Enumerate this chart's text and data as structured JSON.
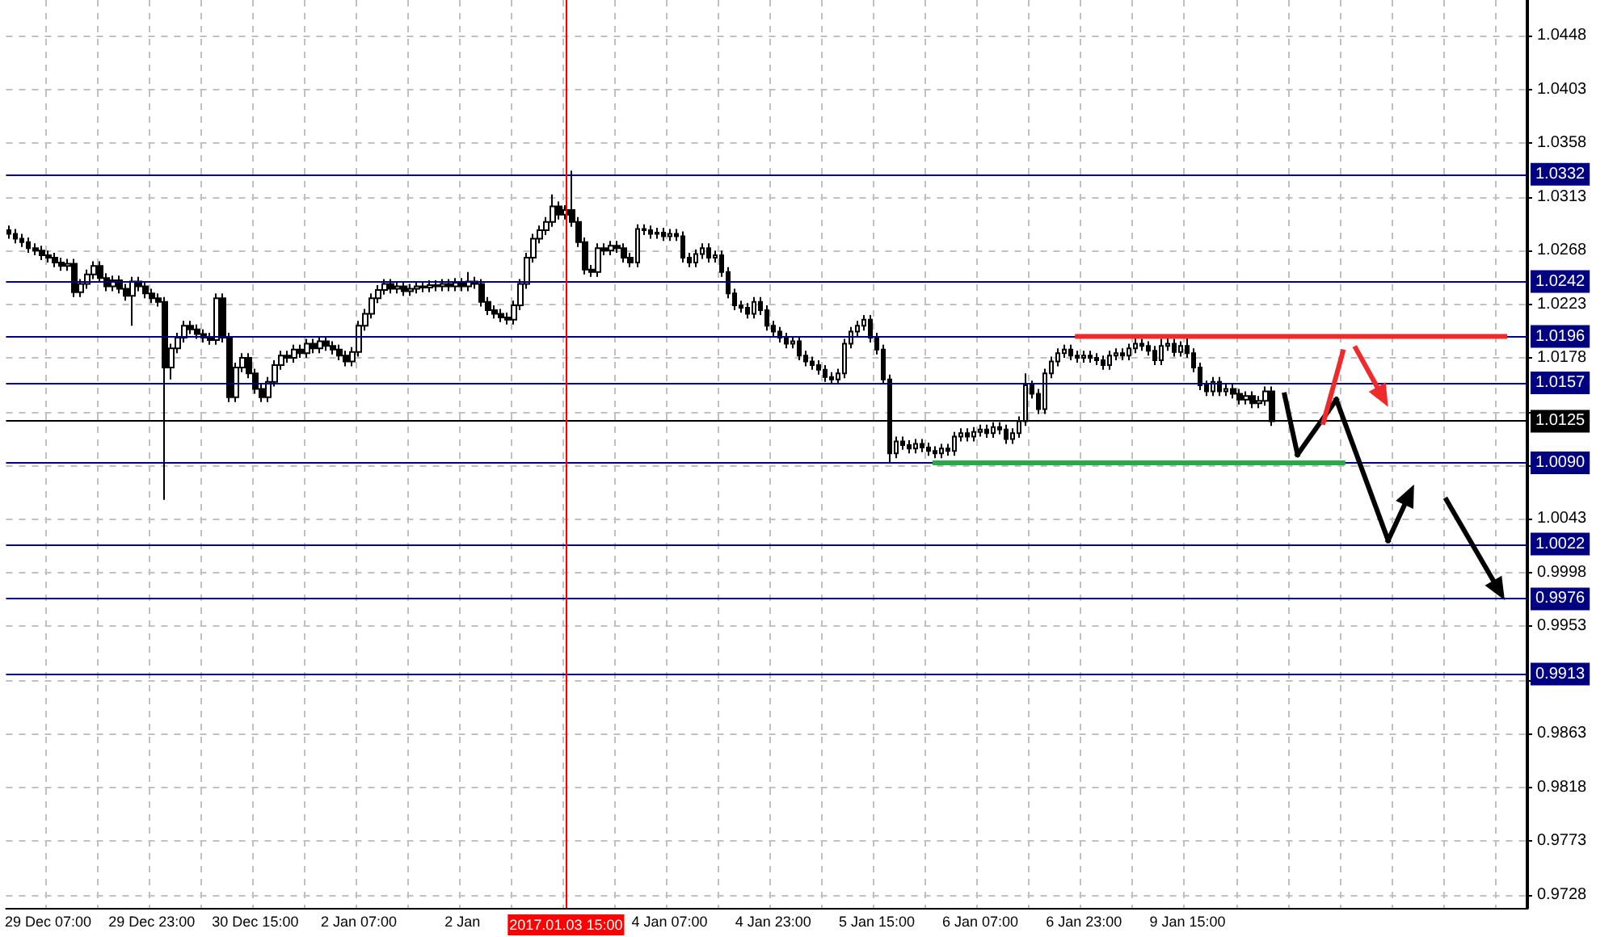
{
  "chart_data": {
    "type": "candlestick",
    "color": "#000000",
    "categories": [
      null,
      null,
      null,
      null,
      null,
      null,
      "29 Dec 07:00",
      null,
      null,
      null,
      null,
      null,
      null,
      null,
      null,
      null,
      null,
      null,
      null,
      null,
      null,
      null,
      "29 Dec 23:00",
      null,
      null,
      null,
      null,
      null,
      null,
      null,
      null,
      null,
      null,
      null,
      null,
      null,
      null,
      null,
      "30 Dec 15:00",
      null,
      null,
      null,
      null,
      null,
      null,
      null,
      null,
      null,
      null,
      null,
      null,
      null,
      null,
      null,
      "2 Jan 07:00",
      null,
      null,
      null,
      null,
      null,
      null,
      null,
      null,
      null,
      null,
      null,
      null,
      null,
      null,
      null,
      "2 Jan",
      null,
      null,
      null,
      null,
      null,
      null,
      null,
      null,
      null,
      null,
      null,
      null,
      null,
      null,
      null,
      "2017.01.03 15:00",
      null,
      null,
      null,
      null,
      null,
      null,
      null,
      null,
      null,
      null,
      null,
      null,
      null,
      null,
      null,
      "4 Jan 07:00",
      null,
      null,
      null,
      null,
      null,
      null,
      null,
      null,
      null,
      null,
      null,
      null,
      null,
      null,
      null,
      "4 Jan 23:00",
      null,
      null,
      null,
      null,
      null,
      null,
      null,
      null,
      null,
      null,
      null,
      null,
      null,
      null,
      null,
      "5 Jan 15:00",
      null,
      null,
      null,
      null,
      null,
      null,
      null,
      null,
      null,
      null,
      null,
      null,
      null,
      null,
      null,
      "6 Jan 07:00",
      null,
      null,
      null,
      null,
      null,
      null,
      null,
      null,
      null,
      null,
      null,
      null,
      null,
      null,
      null,
      "6 Jan 23:00",
      null,
      null,
      null,
      null,
      null,
      null,
      null,
      null,
      null,
      null,
      null,
      null,
      null,
      null,
      null,
      "9 Jan 15:00",
      null,
      null,
      null,
      null,
      null,
      null,
      null,
      null,
      null,
      null,
      null,
      null,
      null,
      null,
      null,
      null,
      null,
      null,
      null,
      null,
      null,
      null,
      null,
      null,
      null,
      null,
      null,
      null,
      null,
      null,
      null,
      null,
      null,
      null,
      null,
      null,
      null,
      null,
      null,
      null,
      null,
      null,
      null,
      null,
      null,
      null,
      null,
      null,
      null,
      null,
      null,
      null
    ],
    "ohlc": [
      [
        1.0285,
        1.0289,
        1.0278,
        1.0282
      ],
      [
        1.0282,
        1.0286,
        1.0274,
        1.0278
      ],
      [
        1.0278,
        1.0282,
        1.0271,
        1.0275
      ],
      [
        1.0275,
        1.0279,
        1.0266,
        1.027
      ],
      [
        1.027,
        1.0274,
        1.0264,
        1.0268
      ],
      [
        1.0268,
        1.0272,
        1.026,
        1.0264
      ],
      [
        1.0264,
        1.0268,
        1.0258,
        1.0262
      ],
      [
        1.0262,
        1.0266,
        1.0254,
        1.0258
      ],
      [
        1.0258,
        1.0262,
        1.0251,
        1.0255
      ],
      [
        1.0255,
        1.0261,
        1.0251,
        1.0257
      ],
      [
        1.0257,
        1.0261,
        1.0229,
        1.0233
      ],
      [
        1.0233,
        1.0244,
        1.0229,
        1.024
      ],
      [
        1.024,
        1.0252,
        1.0236,
        1.0248
      ],
      [
        1.0248,
        1.0259,
        1.0244,
        1.0255
      ],
      [
        1.0255,
        1.0259,
        1.0241,
        1.0245
      ],
      [
        1.0245,
        1.0249,
        1.0234,
        1.0238
      ],
      [
        1.0238,
        1.0247,
        1.0234,
        1.0243
      ],
      [
        1.0243,
        1.0247,
        1.0232,
        1.0236
      ],
      [
        1.0236,
        1.024,
        1.0226,
        1.023
      ],
      [
        1.023,
        1.0246,
        1.0205,
        1.0242
      ],
      [
        1.0242,
        1.0246,
        1.0234,
        1.0238
      ],
      [
        1.0238,
        1.0242,
        1.0228,
        1.0232
      ],
      [
        1.0232,
        1.0236,
        1.0224,
        1.0228
      ],
      [
        1.0228,
        1.0232,
        1.0221,
        1.0225
      ],
      [
        1.0225,
        1.0229,
        1.0059,
        1.017
      ],
      [
        1.017,
        1.019,
        1.016,
        1.0186
      ],
      [
        1.0186,
        1.0199,
        1.0182,
        1.0195
      ],
      [
        1.0195,
        1.0209,
        1.0191,
        1.0205
      ],
      [
        1.0205,
        1.0209,
        1.0198,
        1.0202
      ],
      [
        1.0202,
        1.0206,
        1.0194,
        1.0198
      ],
      [
        1.0198,
        1.0202,
        1.0191,
        1.0195
      ],
      [
        1.0195,
        1.0199,
        1.0189,
        1.0193
      ],
      [
        1.0193,
        1.0232,
        1.0189,
        1.0228
      ],
      [
        1.0228,
        1.0232,
        1.0191,
        1.0195
      ],
      [
        1.0195,
        1.0199,
        1.0141,
        1.0145
      ],
      [
        1.0145,
        1.0174,
        1.0141,
        1.017
      ],
      [
        1.017,
        1.0182,
        1.0166,
        1.0178
      ],
      [
        1.0178,
        1.0182,
        1.0161,
        1.0165
      ],
      [
        1.0165,
        1.0169,
        1.0148,
        1.0152
      ],
      [
        1.0152,
        1.0156,
        1.0141,
        1.0145
      ],
      [
        1.0145,
        1.0162,
        1.0141,
        1.0158
      ],
      [
        1.0158,
        1.0176,
        1.0154,
        1.0172
      ],
      [
        1.0172,
        1.0184,
        1.0168,
        1.018
      ],
      [
        1.018,
        1.0184,
        1.0174,
        1.0178
      ],
      [
        1.0178,
        1.0189,
        1.0174,
        1.0185
      ],
      [
        1.0185,
        1.0189,
        1.0178,
        1.0182
      ],
      [
        1.0182,
        1.0194,
        1.0178,
        1.019
      ],
      [
        1.019,
        1.0194,
        1.0182,
        1.0186
      ],
      [
        1.0186,
        1.0196,
        1.0182,
        1.0192
      ],
      [
        1.0192,
        1.0196,
        1.0184,
        1.0188
      ],
      [
        1.0188,
        1.0192,
        1.0181,
        1.0185
      ],
      [
        1.0185,
        1.0189,
        1.0176,
        1.018
      ],
      [
        1.018,
        1.0184,
        1.0171,
        1.0175
      ],
      [
        1.0175,
        1.0187,
        1.0171,
        1.0183
      ],
      [
        1.0183,
        1.0209,
        1.0179,
        1.0205
      ],
      [
        1.0205,
        1.0219,
        1.0201,
        1.0215
      ],
      [
        1.0215,
        1.0232,
        1.0211,
        1.0228
      ],
      [
        1.0228,
        1.0239,
        1.0224,
        1.0235
      ],
      [
        1.0235,
        1.0244,
        1.0231,
        1.024
      ],
      [
        1.024,
        1.0244,
        1.0232,
        1.0236
      ],
      [
        1.0236,
        1.0242,
        1.0232,
        1.0238
      ],
      [
        1.0238,
        1.0242,
        1.023,
        1.0234
      ],
      [
        1.0234,
        1.024,
        1.023,
        1.0236
      ],
      [
        1.0236,
        1.0242,
        1.0232,
        1.0238
      ],
      [
        1.0238,
        1.0242,
        1.0233,
        1.0237
      ],
      [
        1.0237,
        1.0243,
        1.0233,
        1.0239
      ],
      [
        1.0239,
        1.0243,
        1.0234,
        1.0238
      ],
      [
        1.0238,
        1.0244,
        1.0234,
        1.024
      ],
      [
        1.024,
        1.0244,
        1.0234,
        1.0238
      ],
      [
        1.0238,
        1.0245,
        1.0234,
        1.0241
      ],
      [
        1.0241,
        1.0245,
        1.0234,
        1.0238
      ],
      [
        1.0238,
        1.025,
        1.0234,
        1.0242
      ],
      [
        1.0242,
        1.0246,
        1.0236,
        1.024
      ],
      [
        1.024,
        1.0244,
        1.0221,
        1.0225
      ],
      [
        1.0225,
        1.0229,
        1.0214,
        1.0218
      ],
      [
        1.0218,
        1.0222,
        1.0211,
        1.0215
      ],
      [
        1.0215,
        1.0219,
        1.0208,
        1.0212
      ],
      [
        1.0212,
        1.0216,
        1.0206,
        1.021
      ],
      [
        1.021,
        1.0226,
        1.0206,
        1.0222
      ],
      [
        1.0222,
        1.0244,
        1.0218,
        1.024
      ],
      [
        1.024,
        1.0266,
        1.0236,
        1.0262
      ],
      [
        1.0262,
        1.0282,
        1.0258,
        1.0278
      ],
      [
        1.0278,
        1.0289,
        1.0274,
        1.0285
      ],
      [
        1.0285,
        1.0296,
        1.0281,
        1.0292
      ],
      [
        1.0292,
        1.0315,
        1.0288,
        1.0305
      ],
      [
        1.0305,
        1.0309,
        1.0294,
        1.0298
      ],
      [
        1.0298,
        1.0306,
        1.0294,
        1.0302
      ],
      [
        1.0302,
        1.0335,
        1.0288,
        1.0292
      ],
      [
        1.0292,
        1.0296,
        1.0271,
        1.0275
      ],
      [
        1.0275,
        1.0279,
        1.0248,
        1.0252
      ],
      [
        1.0252,
        1.0256,
        1.0246,
        1.025
      ],
      [
        1.025,
        1.0274,
        1.0246,
        1.027
      ],
      [
        1.027,
        1.0274,
        1.0264,
        1.0268
      ],
      [
        1.0268,
        1.0276,
        1.0264,
        1.0272
      ],
      [
        1.0272,
        1.0276,
        1.0266,
        1.027
      ],
      [
        1.027,
        1.0274,
        1.0258,
        1.0262
      ],
      [
        1.0262,
        1.0266,
        1.0254,
        1.0258
      ],
      [
        1.0258,
        1.029,
        1.0254,
        1.0286
      ],
      [
        1.0286,
        1.029,
        1.0281,
        1.0285
      ],
      [
        1.0285,
        1.0289,
        1.0278,
        1.0282
      ],
      [
        1.0282,
        1.0287,
        1.0278,
        1.0283
      ],
      [
        1.0283,
        1.0287,
        1.0276,
        1.028
      ],
      [
        1.028,
        1.0286,
        1.0276,
        1.0282
      ],
      [
        1.0282,
        1.0286,
        1.0276,
        1.028
      ],
      [
        1.028,
        1.0284,
        1.0258,
        1.0262
      ],
      [
        1.0262,
        1.0266,
        1.0254,
        1.0258
      ],
      [
        1.0258,
        1.0269,
        1.0254,
        1.0265
      ],
      [
        1.0265,
        1.0274,
        1.0261,
        1.027
      ],
      [
        1.027,
        1.0274,
        1.0258,
        1.0262
      ],
      [
        1.0262,
        1.0268,
        1.0258,
        1.0264
      ],
      [
        1.0264,
        1.0268,
        1.0246,
        1.025
      ],
      [
        1.025,
        1.0254,
        1.0228,
        1.0232
      ],
      [
        1.0232,
        1.0236,
        1.0218,
        1.0222
      ],
      [
        1.0222,
        1.0226,
        1.0216,
        1.022
      ],
      [
        1.022,
        1.0224,
        1.0211,
        1.0215
      ],
      [
        1.0215,
        1.0229,
        1.0211,
        1.0225
      ],
      [
        1.0225,
        1.0229,
        1.0214,
        1.0218
      ],
      [
        1.0218,
        1.0222,
        1.0201,
        1.0205
      ],
      [
        1.0205,
        1.0209,
        1.0196,
        1.02
      ],
      [
        1.02,
        1.0204,
        1.0191,
        1.0195
      ],
      [
        1.0195,
        1.0199,
        1.0186,
        1.019
      ],
      [
        1.019,
        1.0196,
        1.0186,
        1.0192
      ],
      [
        1.0192,
        1.0196,
        1.0176,
        1.018
      ],
      [
        1.018,
        1.0184,
        1.0171,
        1.0175
      ],
      [
        1.0175,
        1.0179,
        1.0168,
        1.0172
      ],
      [
        1.0172,
        1.0176,
        1.0164,
        1.0168
      ],
      [
        1.0168,
        1.0172,
        1.0158,
        1.0162
      ],
      [
        1.0162,
        1.0166,
        1.0156,
        1.016
      ],
      [
        1.016,
        1.0169,
        1.0156,
        1.0165
      ],
      [
        1.0165,
        1.0194,
        1.0161,
        1.019
      ],
      [
        1.019,
        1.0204,
        1.0186,
        1.02
      ],
      [
        1.02,
        1.0209,
        1.0196,
        1.0205
      ],
      [
        1.0205,
        1.0214,
        1.0201,
        1.021
      ],
      [
        1.021,
        1.0214,
        1.0191,
        1.0195
      ],
      [
        1.0195,
        1.0199,
        1.0181,
        1.0185
      ],
      [
        1.0185,
        1.0189,
        1.0156,
        1.016
      ],
      [
        1.016,
        1.0164,
        1.009,
        1.0098
      ],
      [
        1.0098,
        1.0112,
        1.0094,
        1.0108
      ],
      [
        1.0108,
        1.0112,
        1.0101,
        1.0105
      ],
      [
        1.0105,
        1.0109,
        1.0098,
        1.0102
      ],
      [
        1.0102,
        1.011,
        1.0098,
        1.0106
      ],
      [
        1.0106,
        1.011,
        1.0099,
        1.0103
      ],
      [
        1.0103,
        1.0107,
        1.0096,
        1.01
      ],
      [
        1.01,
        1.0104,
        1.0094,
        1.0098
      ],
      [
        1.0098,
        1.0106,
        1.0094,
        1.0102
      ],
      [
        1.0102,
        1.0106,
        1.0096,
        1.01
      ],
      [
        1.01,
        1.0116,
        1.0096,
        1.0112
      ],
      [
        1.0112,
        1.0119,
        1.0108,
        1.0115
      ],
      [
        1.0115,
        1.0119,
        1.0108,
        1.0112
      ],
      [
        1.0112,
        1.012,
        1.0108,
        1.0116
      ],
      [
        1.0116,
        1.0122,
        1.0112,
        1.0118
      ],
      [
        1.0118,
        1.0122,
        1.0111,
        1.0115
      ],
      [
        1.0115,
        1.0124,
        1.0111,
        1.012
      ],
      [
        1.012,
        1.0124,
        1.0114,
        1.0118
      ],
      [
        1.0118,
        1.0122,
        1.0106,
        1.011
      ],
      [
        1.011,
        1.0119,
        1.0106,
        1.0115
      ],
      [
        1.0115,
        1.0129,
        1.0111,
        1.0125
      ],
      [
        1.0125,
        1.0165,
        1.0121,
        1.0155
      ],
      [
        1.0155,
        1.0159,
        1.0144,
        1.0148
      ],
      [
        1.0148,
        1.0152,
        1.0131,
        1.0135
      ],
      [
        1.0135,
        1.0169,
        1.0131,
        1.0165
      ],
      [
        1.0165,
        1.0179,
        1.0161,
        1.0175
      ],
      [
        1.0175,
        1.0186,
        1.0171,
        1.0182
      ],
      [
        1.0182,
        1.0189,
        1.0178,
        1.0185
      ],
      [
        1.0185,
        1.0189,
        1.0176,
        1.018
      ],
      [
        1.018,
        1.0184,
        1.0174,
        1.0178
      ],
      [
        1.0178,
        1.0184,
        1.0174,
        1.018
      ],
      [
        1.018,
        1.0184,
        1.0174,
        1.0178
      ],
      [
        1.0178,
        1.0182,
        1.0172,
        1.0176
      ],
      [
        1.0176,
        1.018,
        1.0168,
        1.0172
      ],
      [
        1.0172,
        1.0184,
        1.0168,
        1.018
      ],
      [
        1.018,
        1.0186,
        1.0176,
        1.0182
      ],
      [
        1.0182,
        1.0186,
        1.0176,
        1.018
      ],
      [
        1.018,
        1.019,
        1.0176,
        1.0186
      ],
      [
        1.0186,
        1.0196,
        1.0182,
        1.019
      ],
      [
        1.019,
        1.0194,
        1.0184,
        1.0188
      ],
      [
        1.0188,
        1.0192,
        1.018,
        1.0184
      ],
      [
        1.0184,
        1.0188,
        1.0172,
        1.0176
      ],
      [
        1.0176,
        1.0194,
        1.0172,
        1.0188
      ],
      [
        1.0188,
        1.0196,
        1.0184,
        1.019
      ],
      [
        1.019,
        1.0194,
        1.0179,
        1.0183
      ],
      [
        1.0183,
        1.0192,
        1.0179,
        1.0188
      ],
      [
        1.0188,
        1.0196,
        1.0178,
        1.0182
      ],
      [
        1.0182,
        1.0186,
        1.0166,
        1.017
      ],
      [
        1.017,
        1.0174,
        1.0151,
        1.0155
      ],
      [
        1.0155,
        1.0159,
        1.0146,
        1.015
      ],
      [
        1.015,
        1.0162,
        1.0146,
        1.0158
      ],
      [
        1.0158,
        1.0162,
        1.0146,
        1.015
      ],
      [
        1.015,
        1.0156,
        1.0146,
        1.0152
      ],
      [
        1.0152,
        1.0156,
        1.0144,
        1.0148
      ],
      [
        1.0148,
        1.0152,
        1.0139,
        1.0143
      ],
      [
        1.0143,
        1.015,
        1.0139,
        1.0146
      ],
      [
        1.0146,
        1.015,
        1.0136,
        1.014
      ],
      [
        1.014,
        1.0146,
        1.0136,
        1.0142
      ],
      [
        1.0142,
        1.0154,
        1.0138,
        1.015
      ],
      [
        1.015,
        1.0154,
        1.0121,
        1.0125
      ],
      null,
      null,
      null,
      null,
      null,
      null,
      null,
      null,
      null,
      null,
      null,
      null,
      null,
      null,
      null,
      null,
      null,
      null,
      null,
      null,
      null,
      null,
      null,
      null,
      null,
      null,
      null,
      null,
      null,
      null,
      null,
      null,
      null,
      null,
      null,
      null,
      null,
      null,
      null
    ],
    "ylim": [
      0.9717,
      1.0478
    ],
    "yticks": [
      0.9728,
      0.9773,
      0.9818,
      0.9863,
      {
        "value": 0.9908,
        "label": null
      },
      0.9953,
      0.9998,
      1.0043,
      {
        "value": 1.0088,
        "label": null
      },
      {
        "value": 1.0133,
        "label": null
      },
      1.0178,
      1.0223,
      1.0268,
      1.0313,
      1.0358,
      1.0403,
      1.0448
    ],
    "grid": true,
    "ref_lines": [
      {
        "axis": "y",
        "value": 1.0332,
        "label": "1.0332",
        "color": "#000080"
      },
      {
        "axis": "y",
        "value": 1.0242,
        "label": "1.0242",
        "color": "#000080"
      },
      {
        "axis": "y",
        "value": 1.0196,
        "label": "1.0196",
        "color": "#000080"
      },
      {
        "axis": "y",
        "value": 1.0157,
        "label": "1.0157",
        "color": "#000080"
      },
      {
        "axis": "y",
        "value": 1.0125,
        "label": "1.0125",
        "color": "#000000"
      },
      {
        "axis": "y",
        "value": 1.009,
        "label": "1.0090",
        "color": "#000080"
      },
      {
        "axis": "y",
        "value": 1.0022,
        "label": "1.0022",
        "color": "#000080"
      },
      {
        "axis": "y",
        "value": 0.9976,
        "label": "0.9976",
        "color": "#000080"
      },
      {
        "axis": "y",
        "value": 0.9913,
        "label": "0.9913",
        "color": "#000080"
      },
      {
        "axis": "x",
        "value": "2017.01.03 15:00",
        "color": "#ff0000"
      }
    ]
  }
}
